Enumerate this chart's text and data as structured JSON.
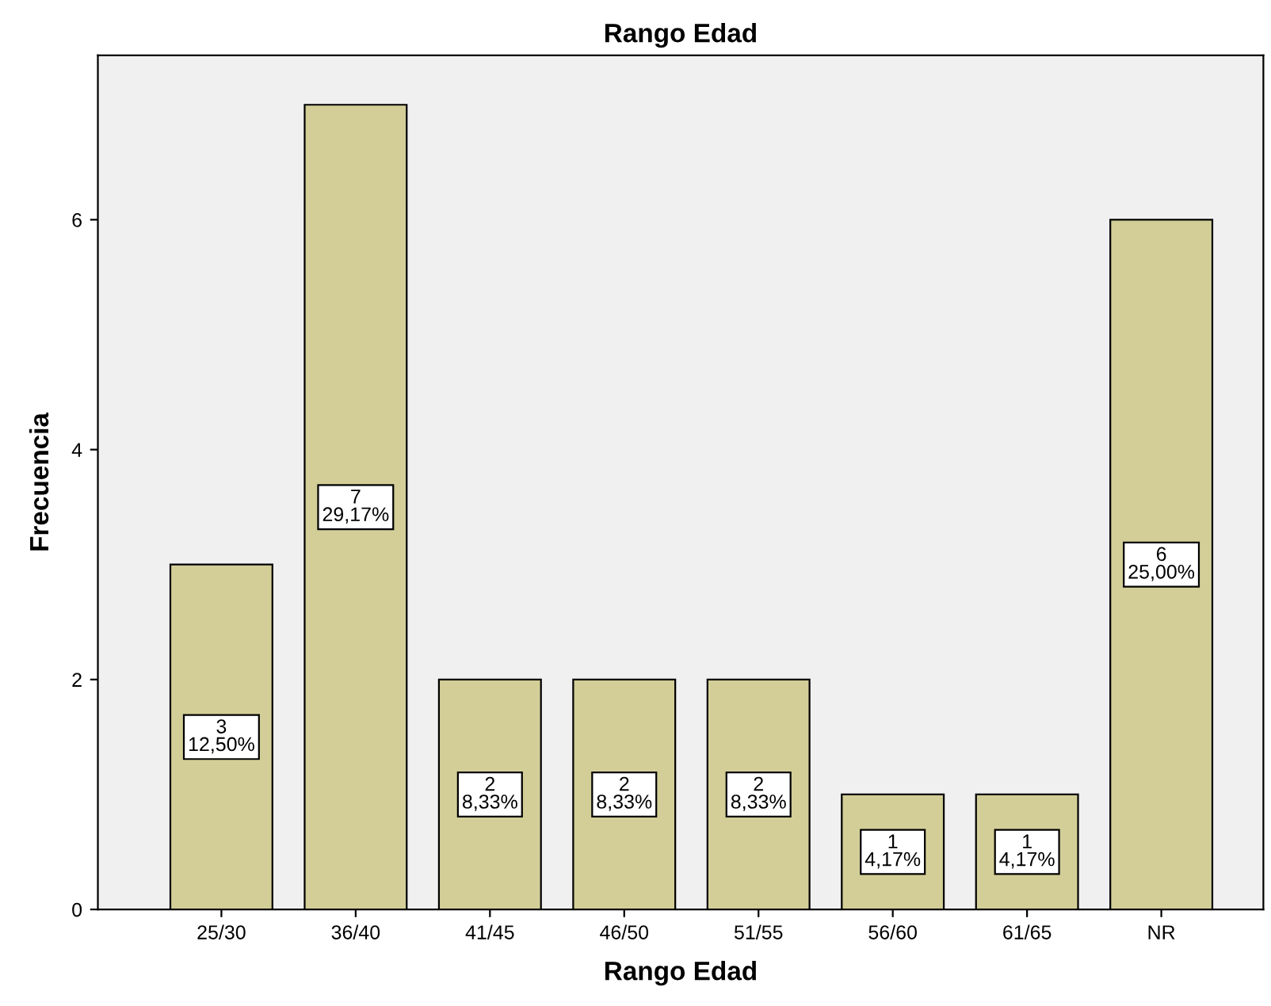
{
  "chart_data": {
    "type": "bar",
    "title": "Rango Edad",
    "xlabel": "Rango Edad",
    "ylabel": "Frecuencia",
    "categories": [
      "25/30",
      "36/40",
      "41/45",
      "46/50",
      "51/55",
      "56/60",
      "61/65",
      "NR"
    ],
    "values": [
      3,
      7,
      2,
      2,
      2,
      1,
      1,
      6
    ],
    "color": "#d3ce97",
    "value_labels": [
      "3\n12,50%",
      "7\n29,17%",
      "2\n8,33%",
      "2\n8,33%",
      "2\n8,33%",
      "1\n4,17%",
      "1\n4,17%",
      "6\n25,00%"
    ],
    "ylim": [
      0,
      7.43
    ],
    "yticks": [
      0,
      2,
      4,
      6
    ],
    "grid": false,
    "legend": false
  }
}
